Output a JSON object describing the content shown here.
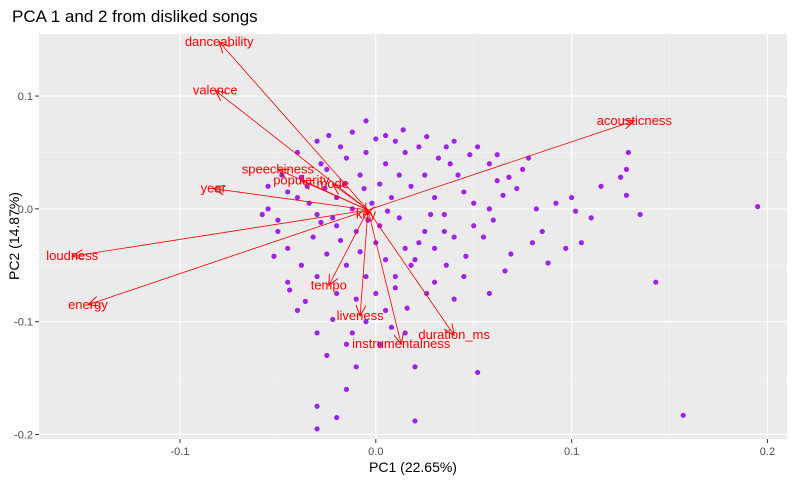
{
  "chart_data": {
    "type": "scatter",
    "title": "PCA 1 and 2 from disliked songs",
    "xlabel": "PC1 (22.65%)",
    "ylabel": "PC2 (14.87%)",
    "xlim": [
      -0.172,
      0.21
    ],
    "ylim": [
      -0.204,
      0.155
    ],
    "x_ticks": [
      -0.1,
      0.0,
      0.1,
      0.2
    ],
    "x_tick_labels": [
      "-0.1",
      "0.0",
      "0.1",
      "0.2"
    ],
    "y_ticks": [
      -0.2,
      -0.1,
      0.0,
      0.1
    ],
    "y_tick_labels": [
      "-0.2",
      "-0.1",
      "0.0",
      "0.1"
    ],
    "grid": true,
    "point_color": "#a020f0",
    "loading_color": "#ff0000",
    "panel_background": "#ebebeb",
    "points": [
      [
        0.195,
        0.002
      ],
      [
        0.157,
        -0.183
      ],
      [
        0.143,
        -0.065
      ],
      [
        0.129,
        0.05
      ],
      [
        0.128,
        0.035
      ],
      [
        0.125,
        0.028
      ],
      [
        0.128,
        0.012
      ],
      [
        0.097,
        -0.035
      ],
      [
        0.1,
        0.01
      ],
      [
        0.102,
        -0.002
      ],
      [
        0.085,
        -0.02
      ],
      [
        0.082,
        0.0
      ],
      [
        0.08,
        -0.03
      ],
      [
        0.072,
        0.018
      ],
      [
        0.069,
        -0.04
      ],
      [
        0.075,
        0.035
      ],
      [
        0.06,
        -0.01
      ],
      [
        0.062,
        0.025
      ],
      [
        0.055,
        -0.025
      ],
      [
        0.05,
        0.005
      ],
      [
        0.052,
        -0.145
      ],
      [
        0.045,
        -0.06
      ],
      [
        0.04,
        -0.08
      ],
      [
        0.038,
        0.04
      ],
      [
        0.035,
        -0.02
      ],
      [
        0.02,
        -0.188
      ],
      [
        0.02,
        -0.14
      ],
      [
        0.015,
        -0.11
      ],
      [
        -0.015,
        -0.16
      ],
      [
        -0.02,
        -0.185
      ],
      [
        -0.03,
        -0.175
      ],
      [
        -0.03,
        -0.195
      ],
      [
        -0.045,
        -0.065
      ],
      [
        -0.05,
        -0.01
      ],
      [
        -0.055,
        0.0
      ],
      [
        -0.048,
        0.03
      ],
      [
        -0.04,
        0.05
      ],
      [
        -0.03,
        0.06
      ],
      [
        -0.005,
        0.078
      ],
      [
        0.005,
        0.065
      ],
      [
        0.015,
        0.05
      ],
      [
        0.025,
        0.03
      ],
      [
        0.03,
        0.01
      ],
      [
        0.028,
        -0.005
      ],
      [
        0.022,
        -0.03
      ],
      [
        0.018,
        -0.05
      ],
      [
        0.01,
        -0.07
      ],
      [
        0.005,
        -0.09
      ],
      [
        -0.005,
        -0.1
      ],
      [
        -0.015,
        -0.12
      ],
      [
        -0.025,
        -0.13
      ],
      [
        -0.01,
        -0.14
      ],
      [
        -0.03,
        -0.11
      ],
      [
        -0.04,
        -0.09
      ],
      [
        0.0,
        -0.03
      ],
      [
        -0.01,
        -0.02
      ],
      [
        -0.02,
        -0.015
      ],
      [
        -0.03,
        -0.005
      ],
      [
        -0.04,
        0.01
      ],
      [
        -0.035,
        0.02
      ],
      [
        -0.025,
        0.035
      ],
      [
        -0.015,
        0.045
      ],
      [
        -0.005,
        0.05
      ],
      [
        0.005,
        0.04
      ],
      [
        0.012,
        0.03
      ],
      [
        0.018,
        0.02
      ],
      [
        0.008,
        0.01
      ],
      [
        -0.002,
        0.005
      ],
      [
        -0.012,
        0.0
      ],
      [
        -0.022,
        -0.008
      ],
      [
        -0.032,
        -0.025
      ],
      [
        -0.025,
        -0.04
      ],
      [
        -0.015,
        -0.05
      ],
      [
        -0.005,
        -0.06
      ],
      [
        0.005,
        -0.045
      ],
      [
        0.015,
        -0.035
      ],
      [
        0.025,
        -0.02
      ],
      [
        0.035,
        -0.005
      ],
      [
        0.045,
        0.015
      ],
      [
        0.042,
        0.03
      ],
      [
        0.032,
        0.045
      ],
      [
        0.022,
        0.055
      ],
      [
        0.01,
        0.06
      ],
      [
        -0.018,
        0.055
      ],
      [
        -0.028,
        0.04
      ],
      [
        -0.038,
        0.028
      ],
      [
        -0.045,
        0.015
      ],
      [
        -0.05,
        -0.02
      ],
      [
        -0.045,
        -0.035
      ],
      [
        -0.038,
        -0.05
      ],
      [
        -0.03,
        -0.06
      ],
      [
        -0.02,
        -0.075
      ],
      [
        -0.01,
        -0.08
      ],
      [
        0.0,
        -0.075
      ],
      [
        0.01,
        -0.06
      ],
      [
        0.02,
        -0.045
      ],
      [
        0.03,
        -0.035
      ],
      [
        0.04,
        -0.025
      ],
      [
        0.05,
        -0.015
      ],
      [
        0.058,
        0.0
      ],
      [
        0.065,
        0.012
      ],
      [
        0.068,
        0.028
      ],
      [
        0.058,
        0.04
      ],
      [
        0.048,
        0.048
      ],
      [
        0.036,
        0.055
      ],
      [
        -0.008,
        0.03
      ],
      [
        -0.016,
        0.022
      ],
      [
        -0.006,
        0.018
      ],
      [
        0.002,
        0.022
      ],
      [
        -0.02,
        0.01
      ],
      [
        -0.026,
        0.018
      ],
      [
        -0.034,
        0.005
      ],
      [
        -0.028,
        -0.012
      ],
      [
        -0.018,
        -0.028
      ],
      [
        -0.008,
        -0.038
      ],
      [
        0.002,
        -0.015
      ],
      [
        0.012,
        -0.008
      ],
      [
        0.006,
        -0.002
      ],
      [
        -0.004,
        -0.01
      ],
      [
        0.088,
        -0.048
      ],
      [
        0.092,
        0.005
      ],
      [
        0.11,
        -0.008
      ],
      [
        0.115,
        0.02
      ],
      [
        0.135,
        -0.005
      ],
      [
        0.105,
        -0.03
      ],
      [
        0.078,
        0.045
      ],
      [
        0.066,
        -0.055
      ],
      [
        0.058,
        -0.075
      ],
      [
        0.03,
        -0.065
      ],
      [
        0.046,
        -0.042
      ],
      [
        -0.055,
        0.02
      ],
      [
        -0.058,
        -0.005
      ],
      [
        -0.052,
        -0.042
      ],
      [
        -0.044,
        -0.072
      ],
      [
        -0.036,
        -0.082
      ],
      [
        -0.022,
        -0.098
      ],
      [
        -0.012,
        -0.11
      ],
      [
        0.002,
        -0.12
      ],
      [
        0.008,
        -0.105
      ],
      [
        0.016,
        -0.088
      ],
      [
        0.026,
        -0.075
      ],
      [
        0.036,
        -0.05
      ],
      [
        -0.024,
        0.065
      ],
      [
        -0.012,
        0.068
      ],
      [
        0.0,
        0.062
      ],
      [
        0.014,
        0.07
      ],
      [
        0.026,
        0.064
      ],
      [
        0.04,
        0.06
      ],
      [
        0.052,
        0.055
      ],
      [
        0.062,
        0.048
      ]
    ],
    "loadings": [
      {
        "name": "danceability",
        "x": -0.08,
        "y": 0.148
      },
      {
        "name": "valence",
        "x": -0.082,
        "y": 0.105
      },
      {
        "name": "acousticness",
        "x": 0.132,
        "y": 0.078
      },
      {
        "name": "speechiness",
        "x": -0.05,
        "y": 0.035
      },
      {
        "name": "popularity",
        "x": -0.038,
        "y": 0.025
      },
      {
        "name": "mode",
        "x": -0.022,
        "y": 0.022
      },
      {
        "name": "year",
        "x": -0.083,
        "y": 0.018
      },
      {
        "name": "loudness",
        "x": -0.155,
        "y": -0.042
      },
      {
        "name": "energy",
        "x": -0.147,
        "y": -0.085
      },
      {
        "name": "tempo",
        "x": -0.024,
        "y": -0.068
      },
      {
        "name": "liveness",
        "x": -0.008,
        "y": -0.095
      },
      {
        "name": "instrumentalness",
        "x": 0.013,
        "y": -0.12
      },
      {
        "name": "duration_ms",
        "x": 0.04,
        "y": -0.112
      },
      {
        "name": "key",
        "x": -0.005,
        "y": -0.005
      }
    ],
    "arrow_origin": [
      -0.004,
      -0.001
    ]
  }
}
